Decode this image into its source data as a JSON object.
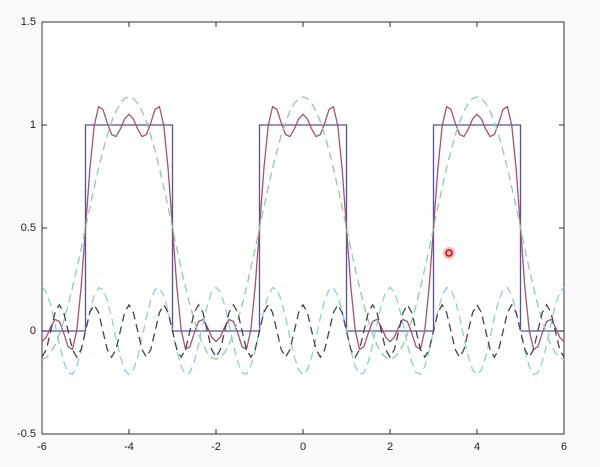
{
  "chart_data": {
    "type": "line",
    "xlim": [
      -6,
      6
    ],
    "ylim": [
      -0.5,
      1.5
    ],
    "xticks": [
      -6,
      -4,
      -2,
      0,
      2,
      4,
      6
    ],
    "yticks": [
      -0.5,
      0,
      0.5,
      1,
      1.5
    ],
    "x": [
      -6,
      -5.9,
      -5.8,
      -5.7,
      -5.6,
      -5.5,
      -5.4,
      -5.3,
      -5.2,
      -5.1,
      -5,
      -4.9,
      -4.8,
      -4.7,
      -4.6,
      -4.5,
      -4.4,
      -4.3,
      -4.2,
      -4.1,
      -4,
      -3.9,
      -3.8,
      -3.7,
      -3.6,
      -3.5,
      -3.4,
      -3.3,
      -3.2,
      -3.1,
      -3,
      -2.9,
      -2.8,
      -2.7,
      -2.6,
      -2.5,
      -2.4,
      -2.3,
      -2.2,
      -2.1,
      -2,
      -1.9,
      -1.8,
      -1.7,
      -1.6,
      -1.5,
      -1.4,
      -1.3,
      -1.2,
      -1.1,
      -1,
      -0.9,
      -0.8,
      -0.7,
      -0.6,
      -0.5,
      -0.4,
      -0.3,
      -0.2,
      -0.1,
      0,
      0.1,
      0.2,
      0.3,
      0.4,
      0.5,
      0.6,
      0.7,
      0.8,
      0.9,
      1,
      1.1,
      1.2,
      1.3,
      1.4,
      1.5,
      1.6,
      1.7,
      1.8,
      1.9,
      2,
      2.1,
      2.2,
      2.3,
      2.4,
      2.5,
      2.6,
      2.7,
      2.8,
      2.9,
      3,
      3.1,
      3.2,
      3.3,
      3.4,
      3.5,
      3.6,
      3.7,
      3.8,
      3.9,
      4,
      4.1,
      4.2,
      4.3,
      4.4,
      4.5,
      4.6,
      4.7,
      4.8,
      4.9,
      5,
      5.1,
      5.2,
      5.3,
      5.4,
      5.5,
      5.6,
      5.7,
      5.8,
      5.9,
      6
    ],
    "series": [
      {
        "color": "#5050b4",
        "style": "solid",
        "x": [
          -6,
          -5,
          -5,
          -3,
          -3,
          -1,
          -1,
          1,
          1,
          3,
          3,
          5,
          5,
          6
        ],
        "values": [
          0,
          0,
          1,
          1,
          0,
          0,
          1,
          1,
          0,
          0,
          1,
          1,
          0,
          0
        ]
      },
      {
        "color": "#a8506e",
        "style": "solid",
        "values": [
          -0.052,
          -0.03,
          0.02,
          0.056,
          0.046,
          -0.01,
          -0.076,
          -0.089,
          0.004,
          0.214,
          0.5,
          0.786,
          0.996,
          1.089,
          1.076,
          1.01,
          0.954,
          0.944,
          0.98,
          1.03,
          1.052,
          1.03,
          0.98,
          0.944,
          0.954,
          1.01,
          1.076,
          1.089,
          0.996,
          0.786,
          0.5,
          0.214,
          0.004,
          -0.089,
          -0.076,
          -0.01,
          0.046,
          0.056,
          0.02,
          -0.03,
          -0.052,
          -0.03,
          0.02,
          0.056,
          0.046,
          -0.01,
          -0.076,
          -0.089,
          0.004,
          0.214,
          0.5,
          0.786,
          0.996,
          1.089,
          1.076,
          1.01,
          0.954,
          0.944,
          0.98,
          1.03,
          1.052,
          1.03,
          0.98,
          0.944,
          0.954,
          1.01,
          1.076,
          1.089,
          0.996,
          0.786,
          0.5,
          0.214,
          0.004,
          -0.089,
          -0.076,
          -0.01,
          0.046,
          0.056,
          0.02,
          -0.03,
          -0.052,
          -0.03,
          0.02,
          0.056,
          0.046,
          -0.01,
          -0.076,
          -0.089,
          0.004,
          0.214,
          0.5,
          0.786,
          0.996,
          1.089,
          1.076,
          1.01,
          0.954,
          0.944,
          0.98,
          1.03,
          1.052,
          1.03,
          0.98,
          0.944,
          0.954,
          1.01,
          1.076,
          1.089,
          0.996,
          0.786,
          0.5,
          0.214,
          0.004,
          -0.089,
          -0.076,
          -0.01,
          0.046,
          0.056,
          0.02,
          -0.03,
          -0.052
        ]
      },
      {
        "color": "#86d29a",
        "style": "dashed",
        "values": [
          -0.137,
          -0.129,
          -0.105,
          -0.067,
          -0.015,
          0.05,
          0.126,
          0.211,
          0.303,
          0.4,
          0.5,
          0.6,
          0.697,
          0.789,
          0.874,
          0.95,
          1.015,
          1.067,
          1.105,
          1.129,
          1.137,
          1.129,
          1.105,
          1.067,
          1.015,
          0.95,
          0.874,
          0.789,
          0.697,
          0.6,
          0.5,
          0.4,
          0.303,
          0.211,
          0.126,
          0.05,
          -0.015,
          -0.067,
          -0.105,
          -0.129,
          -0.137,
          -0.129,
          -0.105,
          -0.067,
          -0.015,
          0.05,
          0.126,
          0.211,
          0.303,
          0.4,
          0.5,
          0.6,
          0.697,
          0.789,
          0.874,
          0.95,
          1.015,
          1.067,
          1.105,
          1.129,
          1.137,
          1.129,
          1.105,
          1.067,
          1.015,
          0.95,
          0.874,
          0.789,
          0.697,
          0.6,
          0.5,
          0.4,
          0.303,
          0.211,
          0.126,
          0.05,
          -0.015,
          -0.067,
          -0.105,
          -0.129,
          -0.137,
          -0.129,
          -0.105,
          -0.067,
          -0.015,
          0.05,
          0.126,
          0.211,
          0.303,
          0.4,
          0.5,
          0.6,
          0.697,
          0.789,
          0.874,
          0.95,
          1.015,
          1.067,
          1.105,
          1.129,
          1.137,
          1.129,
          1.105,
          1.067,
          1.015,
          0.95,
          0.874,
          0.789,
          0.697,
          0.6,
          0.5,
          0.4,
          0.303,
          0.211,
          0.126,
          0.05,
          -0.015,
          -0.067,
          -0.105,
          -0.129,
          -0.137
        ]
      },
      {
        "color": "#86d0e0",
        "style": "dashed",
        "values": [
          0.212,
          0.189,
          0.125,
          0.033,
          -0.066,
          -0.15,
          -0.202,
          -0.21,
          -0.172,
          -0.096,
          0,
          0.096,
          0.172,
          0.21,
          0.202,
          0.15,
          0.066,
          -0.033,
          -0.125,
          -0.189,
          -0.212,
          -0.189,
          -0.125,
          -0.033,
          0.066,
          0.15,
          0.202,
          0.21,
          0.172,
          0.096,
          0,
          -0.096,
          -0.172,
          -0.21,
          -0.202,
          -0.15,
          -0.066,
          0.033,
          0.125,
          0.189,
          0.212,
          0.189,
          0.125,
          0.033,
          -0.066,
          -0.15,
          -0.202,
          -0.21,
          -0.172,
          -0.096,
          0,
          0.096,
          0.172,
          0.21,
          0.202,
          0.15,
          0.066,
          -0.033,
          -0.125,
          -0.189,
          -0.212,
          -0.189,
          -0.125,
          -0.033,
          0.066,
          0.15,
          0.202,
          0.21,
          0.172,
          0.096,
          0,
          -0.096,
          -0.172,
          -0.21,
          -0.202,
          -0.15,
          -0.066,
          0.033,
          0.125,
          0.189,
          0.212,
          0.189,
          0.125,
          0.033,
          -0.066,
          -0.15,
          -0.202,
          -0.21,
          -0.172,
          -0.096,
          0,
          0.096,
          0.172,
          0.21,
          0.202,
          0.15,
          0.066,
          -0.033,
          -0.125,
          -0.189,
          -0.212,
          -0.189,
          -0.125,
          -0.033,
          0.066,
          0.15,
          0.202,
          0.21,
          0.172,
          0.096,
          0,
          -0.096,
          -0.172,
          -0.21,
          -0.202,
          -0.15,
          -0.066,
          0.033,
          0.125,
          0.189,
          0.212
        ]
      },
      {
        "color": "#444444",
        "style": "dashed",
        "values": [
          -0.127,
          -0.09,
          0,
          0.09,
          0.127,
          0.09,
          0,
          -0.09,
          -0.127,
          -0.09,
          0,
          0.09,
          0.127,
          0.09,
          0,
          -0.09,
          -0.127,
          -0.09,
          0,
          0.09,
          0.127,
          0.09,
          0,
          -0.09,
          -0.127,
          -0.09,
          0,
          0.09,
          0.127,
          0.09,
          0,
          -0.09,
          -0.127,
          -0.09,
          0,
          0.09,
          0.127,
          0.09,
          0,
          -0.09,
          -0.127,
          -0.09,
          0,
          0.09,
          0.127,
          0.09,
          0,
          -0.09,
          -0.127,
          -0.09,
          0,
          0.09,
          0.127,
          0.09,
          0,
          -0.09,
          -0.127,
          -0.09,
          0,
          0.09,
          0.127,
          0.09,
          0,
          -0.09,
          -0.127,
          -0.09,
          0,
          0.09,
          0.127,
          0.09,
          0,
          -0.09,
          -0.127,
          -0.09,
          0,
          0.09,
          0.127,
          0.09,
          0,
          -0.09,
          -0.127,
          -0.09,
          0,
          0.09,
          0.127,
          0.09,
          0,
          -0.09,
          -0.127,
          -0.09,
          0,
          0.09,
          0.127,
          0.09,
          0,
          -0.09,
          -0.127,
          -0.09,
          0,
          0.09,
          0.127,
          0.09,
          0,
          -0.09,
          -0.127,
          -0.09,
          0,
          0.09,
          0.127,
          0.09,
          0,
          -0.09,
          -0.127,
          -0.09,
          0,
          0.09,
          0.127,
          0.09,
          0,
          -0.09,
          -0.127
        ]
      }
    ]
  }
}
